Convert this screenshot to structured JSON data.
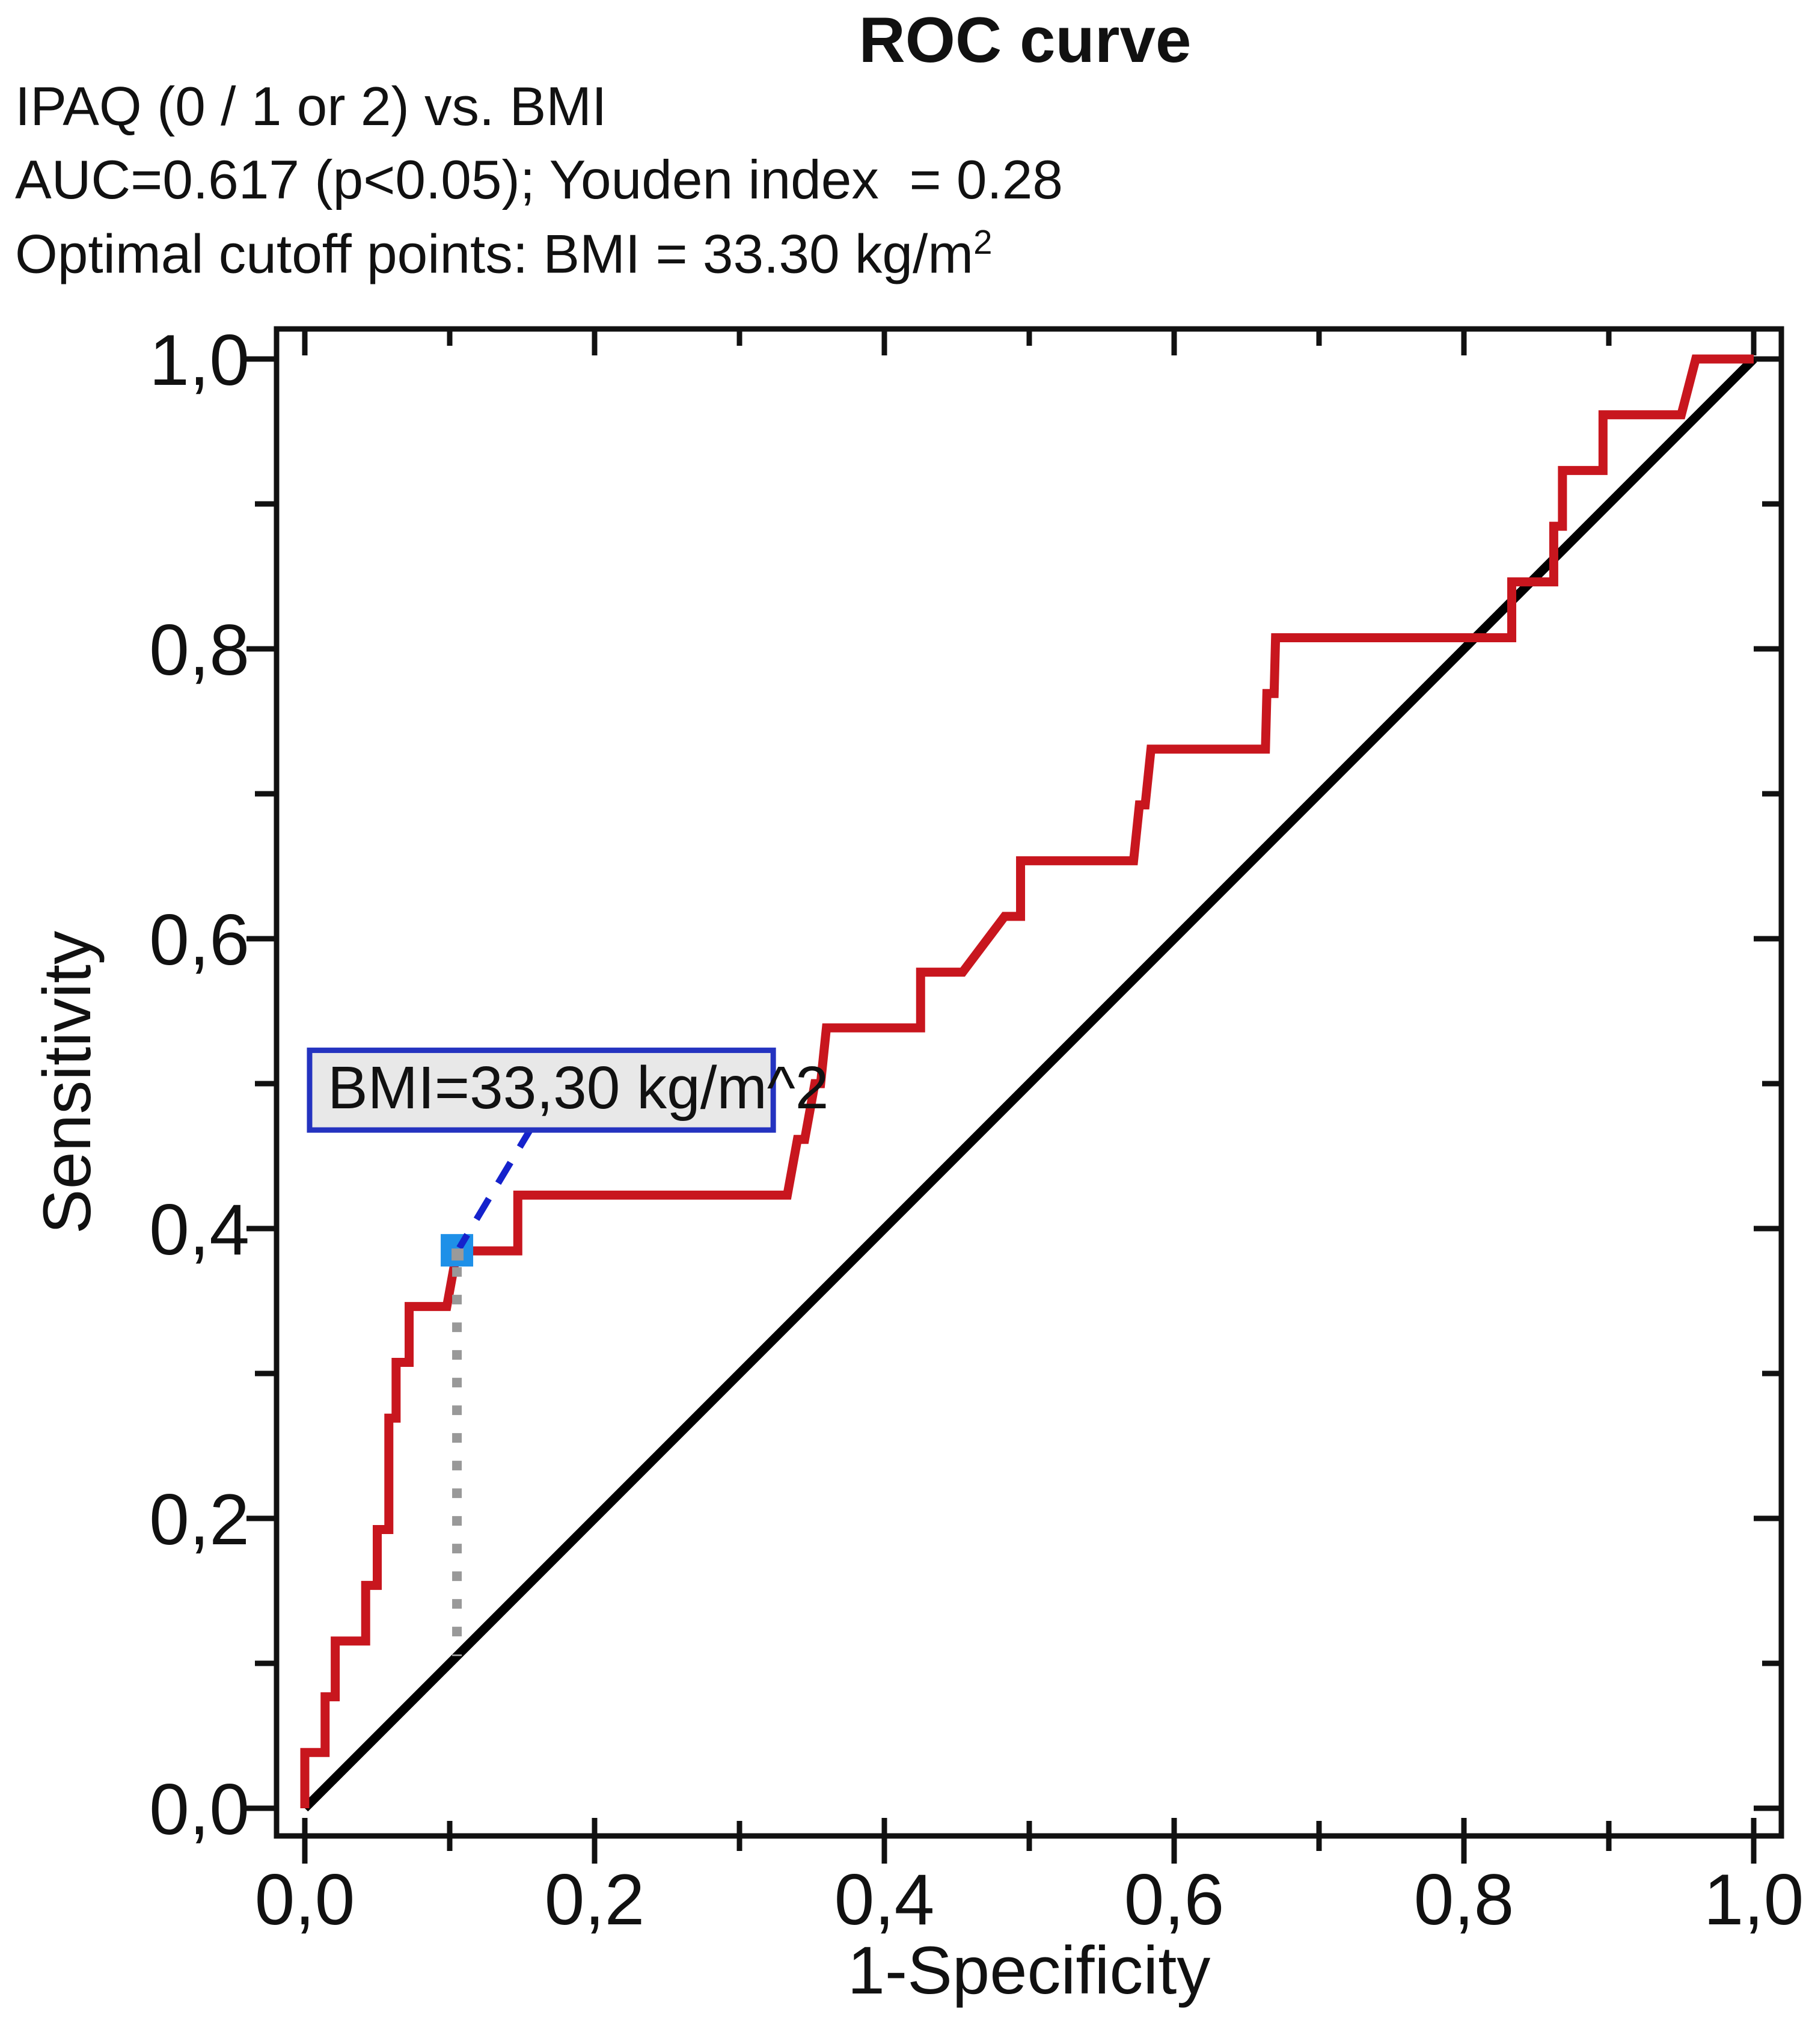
{
  "page": {
    "background": "#ffffff"
  },
  "header": {
    "title": "ROC curve",
    "subtitle_line1": "IPAQ (0 / 1 or 2) vs. BMI",
    "subtitle_line2": "AUC=0.617 (p<0.05); Youden index  = 0.28",
    "subtitle_line3_main": "Optimal cutoff points: BMI = 33.30 kg/m",
    "subtitle_line3_sup": "2"
  },
  "chart_data": {
    "type": "line",
    "title": "ROC curve",
    "xlabel": "1-Specificity",
    "ylabel": "Sensitivity",
    "xlim": [
      0.0,
      1.0
    ],
    "ylim": [
      0.0,
      1.0
    ],
    "grid": false,
    "decimal_separator": ",",
    "x_ticks": {
      "major_values": [
        0.0,
        0.2,
        0.4,
        0.6,
        0.8,
        1.0
      ],
      "major_labels": [
        "0,0",
        "0,2",
        "0,4",
        "0,6",
        "0,8",
        "1,0"
      ],
      "minor_values": [
        0.1,
        0.3,
        0.5,
        0.7,
        0.9
      ]
    },
    "y_ticks": {
      "major_values": [
        0.0,
        0.2,
        0.4,
        0.6,
        0.8,
        1.0
      ],
      "major_labels": [
        "0,0",
        "0,2",
        "0,4",
        "0,6",
        "0,8",
        "1,0"
      ],
      "minor_values": [
        0.1,
        0.3,
        0.5,
        0.7,
        0.9
      ]
    },
    "series": [
      {
        "name": "ROC curve — IPAQ (0 / 1 or 2) vs. BMI",
        "color": "#c8161e",
        "line_width": 15,
        "points": [
          [
            0.0,
            0.0
          ],
          [
            0.0,
            0.0385
          ],
          [
            0.014,
            0.0385
          ],
          [
            0.014,
            0.0769
          ],
          [
            0.021,
            0.0769
          ],
          [
            0.021,
            0.1154
          ],
          [
            0.042,
            0.1154
          ],
          [
            0.042,
            0.1538
          ],
          [
            0.05,
            0.1538
          ],
          [
            0.05,
            0.1923
          ],
          [
            0.058,
            0.1923
          ],
          [
            0.058,
            0.2692
          ],
          [
            0.063,
            0.2692
          ],
          [
            0.063,
            0.3077
          ],
          [
            0.072,
            0.3077
          ],
          [
            0.072,
            0.3462
          ],
          [
            0.098,
            0.3462
          ],
          [
            0.105,
            0.3846
          ],
          [
            0.147,
            0.3846
          ],
          [
            0.147,
            0.4231
          ],
          [
            0.333,
            0.4231
          ],
          [
            0.34,
            0.4615
          ],
          [
            0.345,
            0.4615
          ],
          [
            0.352,
            0.5
          ],
          [
            0.356,
            0.5
          ],
          [
            0.36,
            0.5385
          ],
          [
            0.425,
            0.5385
          ],
          [
            0.425,
            0.5769
          ],
          [
            0.454,
            0.5769
          ],
          [
            0.483,
            0.6154
          ],
          [
            0.494,
            0.6154
          ],
          [
            0.494,
            0.6538
          ],
          [
            0.572,
            0.6538
          ],
          [
            0.576,
            0.6923
          ],
          [
            0.58,
            0.6923
          ],
          [
            0.584,
            0.7308
          ],
          [
            0.663,
            0.7308
          ],
          [
            0.664,
            0.7692
          ],
          [
            0.669,
            0.7692
          ],
          [
            0.67,
            0.8077
          ],
          [
            0.833,
            0.8077
          ],
          [
            0.833,
            0.8462
          ],
          [
            0.862,
            0.8462
          ],
          [
            0.862,
            0.8846
          ],
          [
            0.868,
            0.8846
          ],
          [
            0.868,
            0.9231
          ],
          [
            0.896,
            0.9231
          ],
          [
            0.896,
            0.9615
          ],
          [
            0.95,
            0.9615
          ],
          [
            0.96,
            1.0
          ],
          [
            1.0,
            1.0
          ]
        ]
      },
      {
        "name": "Reference diagonal",
        "color": "#000000",
        "line_width": 15,
        "points": [
          [
            0.0,
            0.0
          ],
          [
            1.0,
            1.0
          ]
        ]
      }
    ],
    "optimal_point": {
      "x": 0.105,
      "y": 0.385,
      "marker_color": "#1e90e8",
      "marker_inner_color": "#9a9a9a",
      "label": "BMI=33,30 kg/m^2",
      "label_box": {
        "x": 0.0033,
        "y_top": 0.523,
        "width": 0.32,
        "height": 0.055,
        "fill": "#e8e8e8",
        "border_color": "#2433c0"
      },
      "pointer_color": "#1522cc",
      "dropline_color": "#999999"
    },
    "stats": {
      "auc": 0.617,
      "p": "p<0.05",
      "youden_index": 0.28,
      "optimal_cutoff_label": "BMI = 33.30 kg/m^2"
    }
  }
}
